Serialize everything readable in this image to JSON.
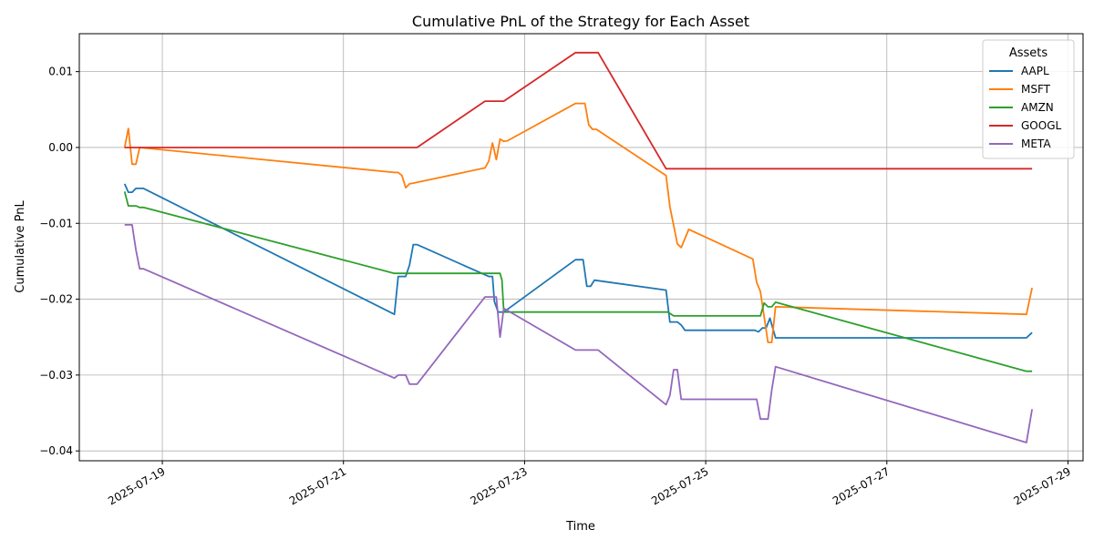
{
  "chart_data": {
    "type": "line",
    "title": "Cumulative PnL of the Strategy for Each Asset",
    "xlabel": "Time",
    "ylabel": "Cumulative PnL",
    "xlim": [
      "2025-07-18T02:00",
      "2025-07-29T04:00"
    ],
    "ylim": [
      -0.0413,
      0.015
    ],
    "xticks": [
      {
        "value": "2025-07-19T00:00",
        "label": "2025-07-19"
      },
      {
        "value": "2025-07-21T00:00",
        "label": "2025-07-21"
      },
      {
        "value": "2025-07-23T00:00",
        "label": "2025-07-23"
      },
      {
        "value": "2025-07-25T00:00",
        "label": "2025-07-25"
      },
      {
        "value": "2025-07-27T00:00",
        "label": "2025-07-27"
      },
      {
        "value": "2025-07-29T00:00",
        "label": "2025-07-29"
      }
    ],
    "yticks": [
      {
        "value": 0.01,
        "label": "0.01"
      },
      {
        "value": 0.0,
        "label": "0.00"
      },
      {
        "value": -0.01,
        "label": "−0.01"
      },
      {
        "value": -0.02,
        "label": "−0.02"
      },
      {
        "value": -0.03,
        "label": "−0.03"
      },
      {
        "value": -0.04,
        "label": "−0.04"
      }
    ],
    "grid": true,
    "legend": {
      "title": "Assets",
      "placement": "top-right"
    },
    "series": [
      {
        "name": "AAPL",
        "color": "#1f77b4",
        "points": [
          [
            "2025-07-18T14:00",
            -0.0048
          ],
          [
            "2025-07-18T15:00",
            -0.0059
          ],
          [
            "2025-07-18T16:00",
            -0.0059
          ],
          [
            "2025-07-18T17:00",
            -0.0054
          ],
          [
            "2025-07-18T19:00",
            -0.0054
          ],
          [
            "2025-07-21T13:30",
            -0.022
          ],
          [
            "2025-07-21T14:30",
            -0.017
          ],
          [
            "2025-07-21T16:30",
            -0.017
          ],
          [
            "2025-07-21T17:30",
            -0.0155
          ],
          [
            "2025-07-21T18:30",
            -0.0128
          ],
          [
            "2025-07-21T19:30",
            -0.0128
          ],
          [
            "2025-07-22T14:30",
            -0.017
          ],
          [
            "2025-07-22T15:30",
            -0.017
          ],
          [
            "2025-07-22T16:00",
            -0.0203
          ],
          [
            "2025-07-22T17:00",
            -0.0217
          ],
          [
            "2025-07-22T18:30",
            -0.0217
          ],
          [
            "2025-07-23T13:30",
            -0.0148
          ],
          [
            "2025-07-23T15:30",
            -0.0148
          ],
          [
            "2025-07-23T16:30",
            -0.0183
          ],
          [
            "2025-07-23T17:30",
            -0.0183
          ],
          [
            "2025-07-23T18:30",
            -0.0175
          ],
          [
            "2025-07-24T13:30",
            -0.0188
          ],
          [
            "2025-07-24T14:30",
            -0.023
          ],
          [
            "2025-07-24T16:30",
            -0.023
          ],
          [
            "2025-07-24T17:30",
            -0.0234
          ],
          [
            "2025-07-24T18:30",
            -0.0241
          ],
          [
            "2025-07-25T13:00",
            -0.0241
          ],
          [
            "2025-07-25T14:00",
            -0.0243
          ],
          [
            "2025-07-25T15:00",
            -0.0238
          ],
          [
            "2025-07-25T16:00",
            -0.0238
          ],
          [
            "2025-07-25T17:00",
            -0.0225
          ],
          [
            "2025-07-25T18:30",
            -0.0251
          ],
          [
            "2025-07-28T13:00",
            -0.0251
          ],
          [
            "2025-07-28T14:30",
            -0.0244
          ]
        ]
      },
      {
        "name": "MSFT",
        "color": "#ff7f0e",
        "points": [
          [
            "2025-07-18T14:00",
            0.0
          ],
          [
            "2025-07-18T15:00",
            0.0025
          ],
          [
            "2025-07-18T16:00",
            -0.0022
          ],
          [
            "2025-07-18T17:00",
            -0.0022
          ],
          [
            "2025-07-18T18:00",
            0.0
          ],
          [
            "2025-07-21T13:30",
            -0.0033
          ],
          [
            "2025-07-21T14:30",
            -0.0033
          ],
          [
            "2025-07-21T15:30",
            -0.0037
          ],
          [
            "2025-07-21T16:30",
            -0.0053
          ],
          [
            "2025-07-21T17:30",
            -0.0048
          ],
          [
            "2025-07-21T18:30",
            -0.0047
          ],
          [
            "2025-07-22T13:30",
            -0.0027
          ],
          [
            "2025-07-22T14:30",
            -0.0018
          ],
          [
            "2025-07-22T15:30",
            0.0006
          ],
          [
            "2025-07-22T16:30",
            -0.0016
          ],
          [
            "2025-07-22T17:30",
            0.0011
          ],
          [
            "2025-07-22T18:30",
            0.0008
          ],
          [
            "2025-07-22T19:30",
            0.0009
          ],
          [
            "2025-07-23T13:30",
            0.0058
          ],
          [
            "2025-07-23T16:00",
            0.0058
          ],
          [
            "2025-07-23T17:00",
            0.003
          ],
          [
            "2025-07-23T18:00",
            0.0024
          ],
          [
            "2025-07-23T19:00",
            0.0024
          ],
          [
            "2025-07-24T13:30",
            -0.0037
          ],
          [
            "2025-07-24T14:30",
            -0.0078
          ],
          [
            "2025-07-24T16:30",
            -0.0127
          ],
          [
            "2025-07-24T17:30",
            -0.0132
          ],
          [
            "2025-07-24T19:30",
            -0.0108
          ],
          [
            "2025-07-25T12:30",
            -0.0147
          ],
          [
            "2025-07-25T13:30",
            -0.0178
          ],
          [
            "2025-07-25T14:30",
            -0.019
          ],
          [
            "2025-07-25T16:30",
            -0.0257
          ],
          [
            "2025-07-25T17:30",
            -0.0257
          ],
          [
            "2025-07-25T18:30",
            -0.021
          ],
          [
            "2025-07-28T13:00",
            -0.022
          ],
          [
            "2025-07-28T14:30",
            -0.0185
          ]
        ]
      },
      {
        "name": "AMZN",
        "color": "#2ca02c",
        "points": [
          [
            "2025-07-18T14:00",
            -0.0058
          ],
          [
            "2025-07-18T15:00",
            -0.0077
          ],
          [
            "2025-07-18T17:00",
            -0.0077
          ],
          [
            "2025-07-18T18:00",
            -0.0079
          ],
          [
            "2025-07-18T19:00",
            -0.0079
          ],
          [
            "2025-07-21T13:30",
            -0.0166
          ],
          [
            "2025-07-21T14:30",
            -0.0166
          ],
          [
            "2025-07-22T16:00",
            -0.0166
          ],
          [
            "2025-07-22T17:30",
            -0.0166
          ],
          [
            "2025-07-22T18:00",
            -0.0175
          ],
          [
            "2025-07-22T18:30",
            -0.0217
          ],
          [
            "2025-07-24T13:00",
            -0.0217
          ],
          [
            "2025-07-24T14:00",
            -0.0217
          ],
          [
            "2025-07-24T15:30",
            -0.0222
          ],
          [
            "2025-07-25T13:30",
            -0.0222
          ],
          [
            "2025-07-25T14:30",
            -0.0222
          ],
          [
            "2025-07-25T15:30",
            -0.0205
          ],
          [
            "2025-07-25T16:30",
            -0.021
          ],
          [
            "2025-07-25T17:30",
            -0.021
          ],
          [
            "2025-07-25T18:30",
            -0.0204
          ],
          [
            "2025-07-28T13:00",
            -0.0295
          ],
          [
            "2025-07-28T14:30",
            -0.0295
          ]
        ]
      },
      {
        "name": "GOOGL",
        "color": "#d62728",
        "points": [
          [
            "2025-07-18T14:00",
            0.0
          ],
          [
            "2025-07-21T19:30",
            0.0
          ],
          [
            "2025-07-22T13:30",
            0.0061
          ],
          [
            "2025-07-22T18:30",
            0.0061
          ],
          [
            "2025-07-23T13:30",
            0.0125
          ],
          [
            "2025-07-23T19:30",
            0.0125
          ],
          [
            "2025-07-24T13:30",
            -0.0028
          ],
          [
            "2025-07-28T14:30",
            -0.0028
          ]
        ]
      },
      {
        "name": "META",
        "color": "#9467bd",
        "points": [
          [
            "2025-07-18T14:00",
            -0.0102
          ],
          [
            "2025-07-18T16:00",
            -0.0102
          ],
          [
            "2025-07-18T17:00",
            -0.0135
          ],
          [
            "2025-07-18T18:00",
            -0.016
          ],
          [
            "2025-07-18T19:00",
            -0.016
          ],
          [
            "2025-07-21T13:30",
            -0.0304
          ],
          [
            "2025-07-21T14:30",
            -0.03
          ],
          [
            "2025-07-21T16:30",
            -0.03
          ],
          [
            "2025-07-21T17:30",
            -0.0312
          ],
          [
            "2025-07-21T19:30",
            -0.0312
          ],
          [
            "2025-07-22T13:30",
            -0.0197
          ],
          [
            "2025-07-22T16:30",
            -0.0197
          ],
          [
            "2025-07-22T17:30",
            -0.025
          ],
          [
            "2025-07-22T18:30",
            -0.0212
          ],
          [
            "2025-07-23T13:30",
            -0.0267
          ],
          [
            "2025-07-23T19:30",
            -0.0267
          ],
          [
            "2025-07-24T13:30",
            -0.0339
          ],
          [
            "2025-07-24T14:30",
            -0.0327
          ],
          [
            "2025-07-24T15:30",
            -0.0293
          ],
          [
            "2025-07-24T16:30",
            -0.0293
          ],
          [
            "2025-07-24T17:30",
            -0.0332
          ],
          [
            "2025-07-25T13:30",
            -0.0332
          ],
          [
            "2025-07-25T14:30",
            -0.0358
          ],
          [
            "2025-07-25T16:30",
            -0.0358
          ],
          [
            "2025-07-25T17:30",
            -0.032
          ],
          [
            "2025-07-25T18:30",
            -0.0289
          ],
          [
            "2025-07-28T13:00",
            -0.0389
          ],
          [
            "2025-07-28T14:30",
            -0.0345
          ]
        ]
      }
    ]
  }
}
